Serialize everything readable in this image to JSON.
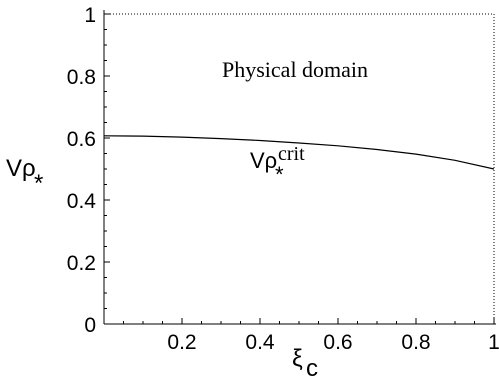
{
  "chart_data": {
    "type": "line",
    "title": "",
    "xlabel": "ξ",
    "xlabel_sub": "c",
    "ylabel": "Vρ",
    "ylabel_sub": "*",
    "xlim": [
      0,
      1
    ],
    "ylim": [
      0,
      1
    ],
    "xticks": [
      {
        "v": 0.2,
        "label": "0.2"
      },
      {
        "v": 0.4,
        "label": "0.4"
      },
      {
        "v": 0.6,
        "label": "0.6"
      },
      {
        "v": 0.8,
        "label": "0.8"
      },
      {
        "v": 1.0,
        "label": "1"
      }
    ],
    "yticks": [
      {
        "v": 0.0,
        "label": "0"
      },
      {
        "v": 0.2,
        "label": "0.2"
      },
      {
        "v": 0.4,
        "label": "0.4"
      },
      {
        "v": 0.6,
        "label": "0.6"
      },
      {
        "v": 0.8,
        "label": "0.8"
      },
      {
        "v": 1.0,
        "label": "1"
      }
    ],
    "series": [
      {
        "name": "Vρ*crit",
        "x": [
          0,
          0.1,
          0.2,
          0.3,
          0.4,
          0.5,
          0.6,
          0.7,
          0.8,
          0.9,
          1.0
        ],
        "y": [
          0.607,
          0.606,
          0.603,
          0.598,
          0.592,
          0.584,
          0.575,
          0.563,
          0.548,
          0.528,
          0.5
        ]
      }
    ],
    "annotations": {
      "region_text": "Physical domain",
      "curve_label_main": "Vρ",
      "curve_label_sub": "*",
      "curve_label_sup": "crit"
    },
    "colors": {
      "line": "#000000",
      "axis": "#000000"
    }
  }
}
